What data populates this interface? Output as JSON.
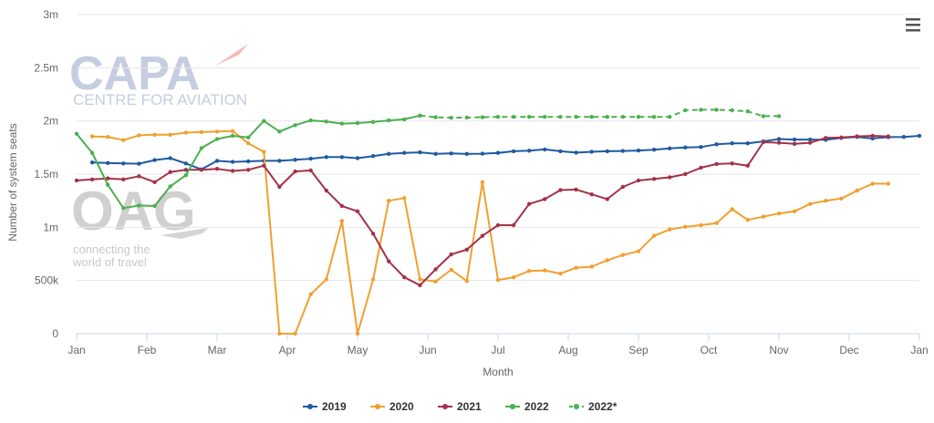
{
  "watermarks": {
    "capa_logo": "CAPA",
    "capa_tagline": "CENTRE FOR AVIATION",
    "oag_logo": "OAG",
    "oag_tagline_1": "connecting the",
    "oag_tagline_2": "world of travel"
  },
  "menu_icon": "hamburger-menu-icon",
  "chart_data": {
    "type": "line",
    "xlabel": "Month",
    "ylabel": "Number of system seats",
    "x_ticks": [
      "Jan",
      "Feb",
      "Mar",
      "Apr",
      "May",
      "Jun",
      "Jul",
      "Aug",
      "Sep",
      "Oct",
      "Nov",
      "Dec",
      "Jan"
    ],
    "y_ticks": [
      "0",
      "500k",
      "1m",
      "1.5m",
      "2m",
      "2.5m",
      "3m"
    ],
    "ylim": [
      0,
      3000000
    ],
    "x_unit": "week of year",
    "grid": "horizontal",
    "legend_position": "bottom",
    "series": [
      {
        "name": "2019",
        "color": "#1f5aa0",
        "dashed": false,
        "values": [
          [
            2,
            1610000
          ],
          [
            3,
            1605000
          ],
          [
            4,
            1600000
          ],
          [
            5,
            1598000
          ],
          [
            6,
            1632000
          ],
          [
            7,
            1650000
          ],
          [
            8,
            1600000
          ],
          [
            9,
            1545000
          ],
          [
            10,
            1625000
          ],
          [
            11,
            1615000
          ],
          [
            12,
            1620000
          ],
          [
            13,
            1625000
          ],
          [
            14,
            1625000
          ],
          [
            15,
            1635000
          ],
          [
            16,
            1645000
          ],
          [
            17,
            1660000
          ],
          [
            18,
            1660000
          ],
          [
            19,
            1650000
          ],
          [
            20,
            1670000
          ],
          [
            21,
            1690000
          ],
          [
            22,
            1700000
          ],
          [
            23,
            1705000
          ],
          [
            24,
            1690000
          ],
          [
            25,
            1695000
          ],
          [
            26,
            1690000
          ],
          [
            27,
            1692000
          ],
          [
            28,
            1700000
          ],
          [
            29,
            1715000
          ],
          [
            30,
            1720000
          ],
          [
            31,
            1732000
          ],
          [
            32,
            1715000
          ],
          [
            33,
            1702000
          ],
          [
            34,
            1710000
          ],
          [
            35,
            1715000
          ],
          [
            36,
            1718000
          ],
          [
            37,
            1722000
          ],
          [
            38,
            1730000
          ],
          [
            39,
            1742000
          ],
          [
            40,
            1750000
          ],
          [
            41,
            1755000
          ],
          [
            42,
            1780000
          ],
          [
            43,
            1790000
          ],
          [
            44,
            1790000
          ],
          [
            45,
            1808000
          ],
          [
            46,
            1830000
          ],
          [
            47,
            1825000
          ],
          [
            48,
            1825000
          ],
          [
            49,
            1822000
          ],
          [
            50,
            1840000
          ],
          [
            51,
            1850000
          ],
          [
            52,
            1835000
          ],
          [
            53,
            1848000
          ],
          [
            54,
            1850000
          ],
          [
            55,
            1860000
          ]
        ]
      },
      {
        "name": "2020",
        "color": "#f0a030",
        "dashed": false,
        "values": [
          [
            2,
            1855000
          ],
          [
            3,
            1850000
          ],
          [
            4,
            1820000
          ],
          [
            5,
            1865000
          ],
          [
            6,
            1870000
          ],
          [
            7,
            1870000
          ],
          [
            8,
            1890000
          ],
          [
            9,
            1895000
          ],
          [
            10,
            1900000
          ],
          [
            11,
            1905000
          ],
          [
            12,
            1790000
          ],
          [
            13,
            1710000
          ],
          [
            14,
            0
          ],
          [
            15,
            0
          ],
          [
            16,
            370000
          ],
          [
            17,
            510000
          ],
          [
            18,
            1060000
          ],
          [
            19,
            0
          ],
          [
            20,
            510000
          ],
          [
            21,
            1250000
          ],
          [
            22,
            1275000
          ],
          [
            23,
            510000
          ],
          [
            24,
            490000
          ],
          [
            25,
            600000
          ],
          [
            26,
            495000
          ],
          [
            27,
            1425000
          ],
          [
            28,
            505000
          ],
          [
            29,
            530000
          ],
          [
            30,
            590000
          ],
          [
            31,
            595000
          ],
          [
            32,
            565000
          ],
          [
            33,
            620000
          ],
          [
            34,
            630000
          ],
          [
            35,
            690000
          ],
          [
            36,
            740000
          ],
          [
            37,
            775000
          ],
          [
            38,
            920000
          ],
          [
            39,
            980000
          ],
          [
            40,
            1005000
          ],
          [
            41,
            1020000
          ],
          [
            42,
            1040000
          ],
          [
            43,
            1170000
          ],
          [
            44,
            1070000
          ],
          [
            45,
            1100000
          ],
          [
            46,
            1130000
          ],
          [
            47,
            1150000
          ],
          [
            48,
            1220000
          ],
          [
            49,
            1250000
          ],
          [
            50,
            1270000
          ],
          [
            51,
            1345000
          ],
          [
            52,
            1410000
          ],
          [
            53,
            1410000
          ]
        ]
      },
      {
        "name": "2021",
        "color": "#a33249",
        "dashed": false,
        "values": [
          [
            1,
            1440000
          ],
          [
            2,
            1450000
          ],
          [
            3,
            1460000
          ],
          [
            4,
            1450000
          ],
          [
            5,
            1480000
          ],
          [
            6,
            1425000
          ],
          [
            7,
            1520000
          ],
          [
            8,
            1540000
          ],
          [
            9,
            1540000
          ],
          [
            10,
            1550000
          ],
          [
            11,
            1530000
          ],
          [
            12,
            1540000
          ],
          [
            13,
            1580000
          ],
          [
            14,
            1380000
          ],
          [
            15,
            1525000
          ],
          [
            16,
            1535000
          ],
          [
            17,
            1345000
          ],
          [
            18,
            1200000
          ],
          [
            19,
            1150000
          ],
          [
            20,
            940000
          ],
          [
            21,
            680000
          ],
          [
            22,
            530000
          ],
          [
            23,
            455000
          ],
          [
            24,
            605000
          ],
          [
            25,
            745000
          ],
          [
            26,
            790000
          ],
          [
            27,
            920000
          ],
          [
            28,
            1020000
          ],
          [
            29,
            1020000
          ],
          [
            30,
            1220000
          ],
          [
            31,
            1265000
          ],
          [
            32,
            1350000
          ],
          [
            33,
            1355000
          ],
          [
            34,
            1310000
          ],
          [
            35,
            1265000
          ],
          [
            36,
            1380000
          ],
          [
            37,
            1440000
          ],
          [
            38,
            1455000
          ],
          [
            39,
            1470000
          ],
          [
            40,
            1500000
          ],
          [
            41,
            1560000
          ],
          [
            42,
            1595000
          ],
          [
            43,
            1600000
          ],
          [
            44,
            1580000
          ],
          [
            45,
            1800000
          ],
          [
            46,
            1795000
          ],
          [
            47,
            1785000
          ],
          [
            48,
            1795000
          ],
          [
            49,
            1840000
          ],
          [
            50,
            1845000
          ],
          [
            51,
            1855000
          ],
          [
            52,
            1860000
          ],
          [
            53,
            1855000
          ]
        ]
      },
      {
        "name": "2022",
        "color": "#4caf50",
        "dashed": false,
        "values": [
          [
            1,
            1880000
          ],
          [
            2,
            1700000
          ],
          [
            3,
            1400000
          ],
          [
            4,
            1180000
          ],
          [
            5,
            1205000
          ],
          [
            6,
            1200000
          ],
          [
            7,
            1385000
          ],
          [
            8,
            1490000
          ],
          [
            9,
            1745000
          ],
          [
            10,
            1830000
          ],
          [
            11,
            1860000
          ],
          [
            12,
            1845000
          ],
          [
            13,
            2000000
          ],
          [
            14,
            1900000
          ],
          [
            15,
            1960000
          ],
          [
            16,
            2005000
          ],
          [
            17,
            1995000
          ],
          [
            18,
            1975000
          ],
          [
            19,
            1980000
          ],
          [
            20,
            1990000
          ],
          [
            21,
            2005000
          ],
          [
            22,
            2015000
          ],
          [
            23,
            2050000
          ]
        ]
      },
      {
        "name": "2022*",
        "color": "#4caf50",
        "dashed": true,
        "values": [
          [
            23,
            2050000
          ],
          [
            24,
            2035000
          ],
          [
            25,
            2030000
          ],
          [
            26,
            2032000
          ],
          [
            27,
            2035000
          ],
          [
            28,
            2038000
          ],
          [
            29,
            2038000
          ],
          [
            30,
            2038000
          ],
          [
            31,
            2038000
          ],
          [
            32,
            2038000
          ],
          [
            33,
            2038000
          ],
          [
            34,
            2038000
          ],
          [
            35,
            2038000
          ],
          [
            36,
            2038000
          ],
          [
            37,
            2038000
          ],
          [
            38,
            2038000
          ],
          [
            39,
            2038000
          ],
          [
            40,
            2100000
          ],
          [
            41,
            2105000
          ],
          [
            42,
            2105000
          ],
          [
            43,
            2100000
          ],
          [
            44,
            2090000
          ],
          [
            45,
            2045000
          ],
          [
            46,
            2045000
          ]
        ]
      }
    ]
  }
}
